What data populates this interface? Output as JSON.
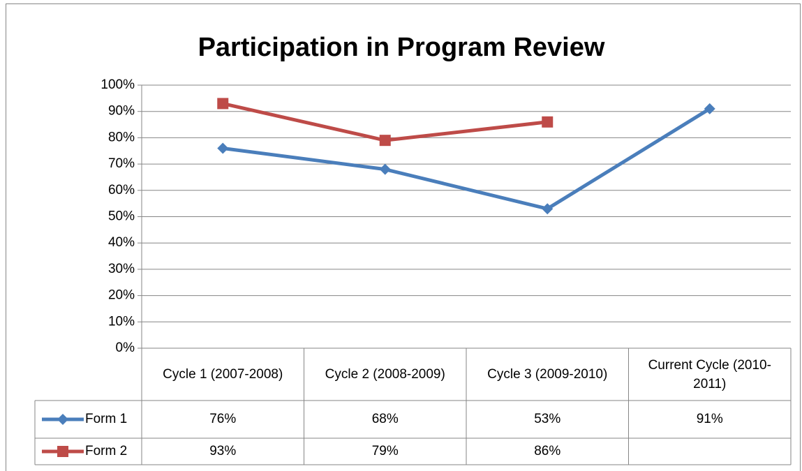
{
  "chart_data": {
    "type": "line",
    "title": "Participation in Program Review",
    "categories": [
      "Cycle 1 (2007-2008)",
      "Cycle 2 (2008-2009)",
      "Cycle 3 (2009-2010)",
      "Current Cycle (2010-2011)"
    ],
    "series": [
      {
        "name": "Form 1",
        "color": "#4a7ebb",
        "marker": "diamond",
        "values": [
          76,
          68,
          53,
          91
        ],
        "value_labels": [
          "76%",
          "68%",
          "53%",
          "91%"
        ]
      },
      {
        "name": "Form 2",
        "color": "#be4b48",
        "marker": "square",
        "values": [
          93,
          79,
          86,
          null
        ],
        "value_labels": [
          "93%",
          "79%",
          "86%",
          null
        ]
      }
    ],
    "ylim": [
      0,
      100
    ],
    "yticks": [
      {
        "value": 0,
        "label": "0%"
      },
      {
        "value": 10,
        "label": "10%"
      },
      {
        "value": 20,
        "label": "20%"
      },
      {
        "value": 30,
        "label": "30%"
      },
      {
        "value": 40,
        "label": "40%"
      },
      {
        "value": 50,
        "label": "50%"
      },
      {
        "value": 60,
        "label": "60%"
      },
      {
        "value": 70,
        "label": "70%"
      },
      {
        "value": 80,
        "label": "80%"
      },
      {
        "value": 90,
        "label": "90%"
      },
      {
        "value": 100,
        "label": "100%"
      }
    ],
    "grid": true,
    "legend": "data-table"
  }
}
